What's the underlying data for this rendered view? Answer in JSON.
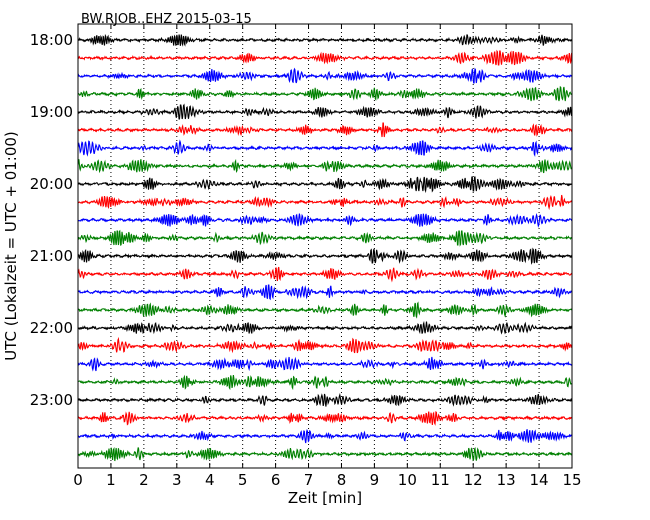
{
  "chart_data": {
    "type": "line",
    "title": "BW.RJOB..EHZ 2015-03-15",
    "xlabel": "Zeit  [min]",
    "ylabel": "UTC (Lokalzeit = UTC + 01:00)",
    "xlim": [
      0,
      15
    ],
    "x_ticks": [
      "0",
      "1",
      "2",
      "3",
      "4",
      "5",
      "6",
      "7",
      "8",
      "9",
      "10",
      "11",
      "12",
      "13",
      "14",
      "15"
    ],
    "y_tick_labels": [
      "18:00",
      "19:00",
      "20:00",
      "21:00",
      "22:00",
      "23:00"
    ],
    "minutes_per_trace": 15,
    "trace_colors": [
      "#000000",
      "#ff0000",
      "#0000ff",
      "#008000"
    ],
    "trace_start_times": [
      "18:00",
      "18:15",
      "18:30",
      "18:45",
      "19:00",
      "19:15",
      "19:30",
      "19:45",
      "20:00",
      "20:15",
      "20:30",
      "20:45",
      "21:00",
      "21:15",
      "21:30",
      "21:45",
      "22:00",
      "22:15",
      "22:30",
      "22:45",
      "23:00",
      "23:15",
      "23:30",
      "23:45"
    ],
    "grid": "vertical-dotted",
    "legend": "none"
  }
}
